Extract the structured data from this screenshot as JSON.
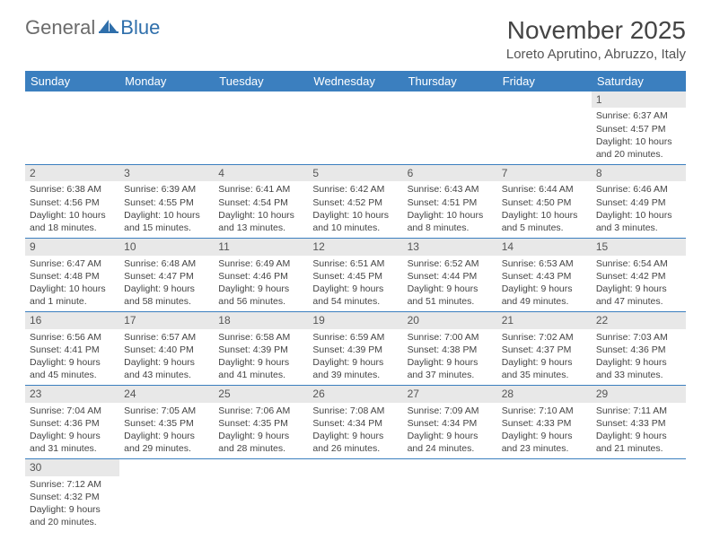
{
  "logo": {
    "general": "General",
    "blue": "Blue"
  },
  "header": {
    "month_title": "November 2025",
    "location": "Loreto Aprutino, Abruzzo, Italy"
  },
  "colors": {
    "header_bg": "#3b7fbf",
    "header_text": "#ffffff",
    "daynum_bg": "#e8e8e8",
    "row_divider": "#3b7fbf",
    "text": "#444444"
  },
  "weekdays": [
    "Sunday",
    "Monday",
    "Tuesday",
    "Wednesday",
    "Thursday",
    "Friday",
    "Saturday"
  ],
  "weeks": [
    [
      null,
      null,
      null,
      null,
      null,
      null,
      {
        "n": "1",
        "sunrise": "Sunrise: 6:37 AM",
        "sunset": "Sunset: 4:57 PM",
        "daylight": "Daylight: 10 hours and 20 minutes."
      }
    ],
    [
      {
        "n": "2",
        "sunrise": "Sunrise: 6:38 AM",
        "sunset": "Sunset: 4:56 PM",
        "daylight": "Daylight: 10 hours and 18 minutes."
      },
      {
        "n": "3",
        "sunrise": "Sunrise: 6:39 AM",
        "sunset": "Sunset: 4:55 PM",
        "daylight": "Daylight: 10 hours and 15 minutes."
      },
      {
        "n": "4",
        "sunrise": "Sunrise: 6:41 AM",
        "sunset": "Sunset: 4:54 PM",
        "daylight": "Daylight: 10 hours and 13 minutes."
      },
      {
        "n": "5",
        "sunrise": "Sunrise: 6:42 AM",
        "sunset": "Sunset: 4:52 PM",
        "daylight": "Daylight: 10 hours and 10 minutes."
      },
      {
        "n": "6",
        "sunrise": "Sunrise: 6:43 AM",
        "sunset": "Sunset: 4:51 PM",
        "daylight": "Daylight: 10 hours and 8 minutes."
      },
      {
        "n": "7",
        "sunrise": "Sunrise: 6:44 AM",
        "sunset": "Sunset: 4:50 PM",
        "daylight": "Daylight: 10 hours and 5 minutes."
      },
      {
        "n": "8",
        "sunrise": "Sunrise: 6:46 AM",
        "sunset": "Sunset: 4:49 PM",
        "daylight": "Daylight: 10 hours and 3 minutes."
      }
    ],
    [
      {
        "n": "9",
        "sunrise": "Sunrise: 6:47 AM",
        "sunset": "Sunset: 4:48 PM",
        "daylight": "Daylight: 10 hours and 1 minute."
      },
      {
        "n": "10",
        "sunrise": "Sunrise: 6:48 AM",
        "sunset": "Sunset: 4:47 PM",
        "daylight": "Daylight: 9 hours and 58 minutes."
      },
      {
        "n": "11",
        "sunrise": "Sunrise: 6:49 AM",
        "sunset": "Sunset: 4:46 PM",
        "daylight": "Daylight: 9 hours and 56 minutes."
      },
      {
        "n": "12",
        "sunrise": "Sunrise: 6:51 AM",
        "sunset": "Sunset: 4:45 PM",
        "daylight": "Daylight: 9 hours and 54 minutes."
      },
      {
        "n": "13",
        "sunrise": "Sunrise: 6:52 AM",
        "sunset": "Sunset: 4:44 PM",
        "daylight": "Daylight: 9 hours and 51 minutes."
      },
      {
        "n": "14",
        "sunrise": "Sunrise: 6:53 AM",
        "sunset": "Sunset: 4:43 PM",
        "daylight": "Daylight: 9 hours and 49 minutes."
      },
      {
        "n": "15",
        "sunrise": "Sunrise: 6:54 AM",
        "sunset": "Sunset: 4:42 PM",
        "daylight": "Daylight: 9 hours and 47 minutes."
      }
    ],
    [
      {
        "n": "16",
        "sunrise": "Sunrise: 6:56 AM",
        "sunset": "Sunset: 4:41 PM",
        "daylight": "Daylight: 9 hours and 45 minutes."
      },
      {
        "n": "17",
        "sunrise": "Sunrise: 6:57 AM",
        "sunset": "Sunset: 4:40 PM",
        "daylight": "Daylight: 9 hours and 43 minutes."
      },
      {
        "n": "18",
        "sunrise": "Sunrise: 6:58 AM",
        "sunset": "Sunset: 4:39 PM",
        "daylight": "Daylight: 9 hours and 41 minutes."
      },
      {
        "n": "19",
        "sunrise": "Sunrise: 6:59 AM",
        "sunset": "Sunset: 4:39 PM",
        "daylight": "Daylight: 9 hours and 39 minutes."
      },
      {
        "n": "20",
        "sunrise": "Sunrise: 7:00 AM",
        "sunset": "Sunset: 4:38 PM",
        "daylight": "Daylight: 9 hours and 37 minutes."
      },
      {
        "n": "21",
        "sunrise": "Sunrise: 7:02 AM",
        "sunset": "Sunset: 4:37 PM",
        "daylight": "Daylight: 9 hours and 35 minutes."
      },
      {
        "n": "22",
        "sunrise": "Sunrise: 7:03 AM",
        "sunset": "Sunset: 4:36 PM",
        "daylight": "Daylight: 9 hours and 33 minutes."
      }
    ],
    [
      {
        "n": "23",
        "sunrise": "Sunrise: 7:04 AM",
        "sunset": "Sunset: 4:36 PM",
        "daylight": "Daylight: 9 hours and 31 minutes."
      },
      {
        "n": "24",
        "sunrise": "Sunrise: 7:05 AM",
        "sunset": "Sunset: 4:35 PM",
        "daylight": "Daylight: 9 hours and 29 minutes."
      },
      {
        "n": "25",
        "sunrise": "Sunrise: 7:06 AM",
        "sunset": "Sunset: 4:35 PM",
        "daylight": "Daylight: 9 hours and 28 minutes."
      },
      {
        "n": "26",
        "sunrise": "Sunrise: 7:08 AM",
        "sunset": "Sunset: 4:34 PM",
        "daylight": "Daylight: 9 hours and 26 minutes."
      },
      {
        "n": "27",
        "sunrise": "Sunrise: 7:09 AM",
        "sunset": "Sunset: 4:34 PM",
        "daylight": "Daylight: 9 hours and 24 minutes."
      },
      {
        "n": "28",
        "sunrise": "Sunrise: 7:10 AM",
        "sunset": "Sunset: 4:33 PM",
        "daylight": "Daylight: 9 hours and 23 minutes."
      },
      {
        "n": "29",
        "sunrise": "Sunrise: 7:11 AM",
        "sunset": "Sunset: 4:33 PM",
        "daylight": "Daylight: 9 hours and 21 minutes."
      }
    ],
    [
      {
        "n": "30",
        "sunrise": "Sunrise: 7:12 AM",
        "sunset": "Sunset: 4:32 PM",
        "daylight": "Daylight: 9 hours and 20 minutes."
      },
      null,
      null,
      null,
      null,
      null,
      null
    ]
  ]
}
